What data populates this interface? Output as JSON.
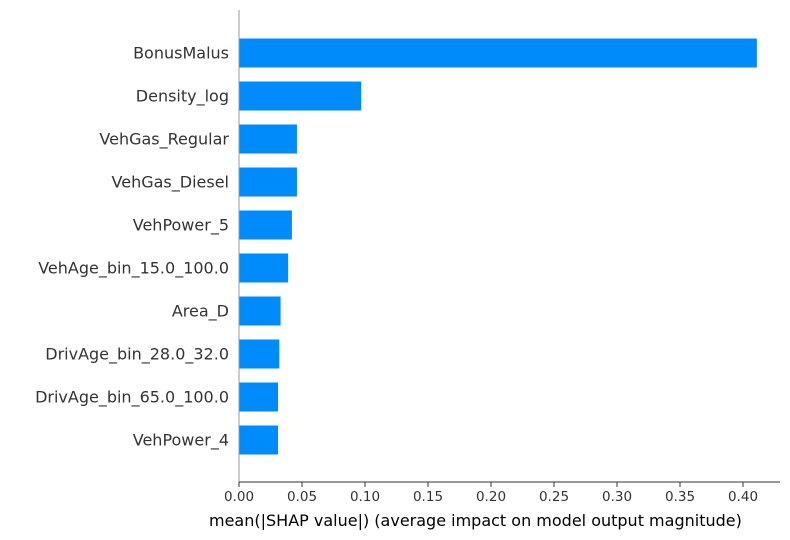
{
  "chart_data": {
    "type": "bar",
    "orientation": "horizontal",
    "categories": [
      "BonusMalus",
      "Density_log",
      "VehGas_Regular",
      "VehGas_Diesel",
      "VehPower_5",
      "VehAge_bin_15.0_100.0",
      "Area_D",
      "DrivAge_bin_28.0_32.0",
      "DrivAge_bin_65.0_100.0",
      "VehPower_4"
    ],
    "values": [
      0.411,
      0.097,
      0.046,
      0.046,
      0.042,
      0.039,
      0.033,
      0.032,
      0.031,
      0.031
    ],
    "xlabel": "mean(|SHAP value|) (average impact on model output magnitude)",
    "xlim": [
      0,
      0.43
    ],
    "xticks": [
      "0.00",
      "0.05",
      "0.10",
      "0.15",
      "0.20",
      "0.25",
      "0.30",
      "0.35",
      "0.40"
    ],
    "grid": false,
    "bar_color": "#008bfb"
  }
}
